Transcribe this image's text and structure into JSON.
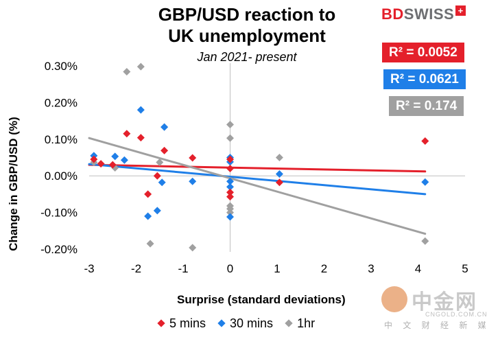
{
  "chart_data": {
    "type": "scatter",
    "title_line1": "GBP/USD reaction to",
    "title_line2": "UK unemployment",
    "subtitle": "Jan 2021- present",
    "xlabel": "Surprise (standard deviations)",
    "ylabel": "Change in GBP/USD  (%)",
    "xlim": [
      -3,
      5
    ],
    "ylim": [
      -0.2,
      0.3
    ],
    "x_ticks": [
      -3,
      -2,
      -1,
      0,
      1,
      2,
      3,
      4,
      5
    ],
    "y_ticks": [
      0.3,
      0.2,
      0.1,
      0.0,
      -0.1,
      -0.2
    ],
    "y_tick_labels": [
      "0.30%",
      "0.20%",
      "0.10%",
      "0.00%",
      "-0.10%",
      "-0.20%"
    ],
    "grid": false,
    "legend_position": "bottom",
    "series": [
      {
        "name": "5 mins",
        "color": "#e4202b",
        "marker": "diamond",
        "points": [
          [
            -2.9,
            0.045
          ],
          [
            -2.75,
            0.033
          ],
          [
            -2.5,
            0.03
          ],
          [
            -2.2,
            0.115
          ],
          [
            -1.9,
            0.104
          ],
          [
            -1.75,
            -0.05
          ],
          [
            -1.55,
            0.0
          ],
          [
            -1.4,
            0.069
          ],
          [
            -0.8,
            0.049
          ],
          [
            0.0,
            0.045
          ],
          [
            0.0,
            0.02
          ],
          [
            0.0,
            -0.045
          ],
          [
            0.0,
            -0.057
          ],
          [
            1.05,
            -0.018
          ],
          [
            4.15,
            0.095
          ]
        ],
        "trend": {
          "x": [
            -3,
            4.15
          ],
          "y": [
            0.03,
            0.012
          ]
        },
        "r2_label": "R² = 0.0052"
      },
      {
        "name": "30 mins",
        "color": "#1f7fe8",
        "marker": "diamond",
        "points": [
          [
            -2.9,
            0.055
          ],
          [
            -2.45,
            0.053
          ],
          [
            -2.25,
            0.043
          ],
          [
            -1.9,
            0.18
          ],
          [
            -1.75,
            -0.11
          ],
          [
            -1.55,
            -0.095
          ],
          [
            -1.45,
            -0.018
          ],
          [
            -1.4,
            0.133
          ],
          [
            -0.8,
            -0.015
          ],
          [
            0.0,
            0.05
          ],
          [
            0.0,
            0.038
          ],
          [
            0.0,
            -0.015
          ],
          [
            0.0,
            -0.03
          ],
          [
            0.0,
            -0.112
          ],
          [
            1.05,
            0.005
          ],
          [
            4.15,
            -0.017
          ]
        ],
        "trend": {
          "x": [
            -3,
            4.15
          ],
          "y": [
            0.032,
            -0.05
          ]
        },
        "r2_label": "R² = 0.0621"
      },
      {
        "name": "1hr",
        "color": "#a0a0a0",
        "marker": "diamond",
        "points": [
          [
            -2.9,
            0.037
          ],
          [
            -2.2,
            0.284
          ],
          [
            -1.9,
            0.298
          ],
          [
            -1.7,
            -0.185
          ],
          [
            -1.5,
            0.037
          ],
          [
            -1.4,
            0.133
          ],
          [
            -2.45,
            0.022
          ],
          [
            -0.8,
            -0.196
          ],
          [
            0.0,
            0.14
          ],
          [
            0.0,
            0.103
          ],
          [
            0.0,
            -0.082
          ],
          [
            0.0,
            -0.09
          ],
          [
            0.0,
            -0.1
          ],
          [
            1.05,
            0.05
          ],
          [
            4.15,
            -0.178
          ]
        ],
        "trend": {
          "x": [
            -3,
            4.15
          ],
          "y": [
            0.103,
            -0.158
          ]
        },
        "r2_label": "R² = 0.174"
      }
    ]
  },
  "brand": {
    "part1": "BD",
    "part2": "SWISS",
    "mark": "+"
  },
  "watermark": {
    "name": "中金网",
    "domain": "CNGOLD.COM.CN",
    "tagline": "中 文 财 经 新 媒 体"
  }
}
